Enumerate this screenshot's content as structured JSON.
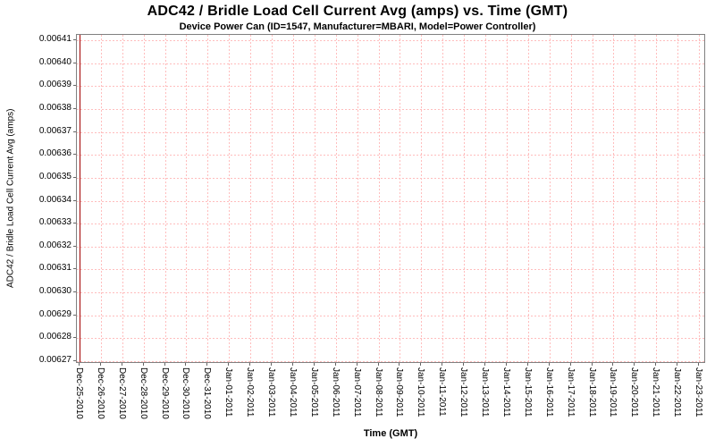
{
  "chart_data": {
    "type": "line",
    "title": "ADC42 / Bridle Load Cell Current Avg (amps) vs. Time (GMT)",
    "subtitle": "Device Power Can (ID=1547, Manufacturer=MBARI, Model=Power Controller)",
    "xlabel": "Time (GMT)",
    "ylabel": "ADC42 / Bridle Load Cell Current Avg (amps)",
    "ylim": [
      0.00627,
      0.00641
    ],
    "y_tick_step": 1e-05,
    "grid": true,
    "gridline_color": "#ffbdbd",
    "plot_border_color": "#808080",
    "legend": "none",
    "y_ticks": [
      "0.00641",
      "0.00640",
      "0.00639",
      "0.00638",
      "0.00637",
      "0.00636",
      "0.00635",
      "0.00634",
      "0.00633",
      "0.00632",
      "0.00631",
      "0.00630",
      "0.00629",
      "0.00628",
      "0.00627"
    ],
    "x_ticks": [
      "Dec-25-2010",
      "Dec-26-2010",
      "Dec-27-2010",
      "Dec-28-2010",
      "Dec-29-2010",
      "Dec-30-2010",
      "Dec-31-2010",
      "Jan-01-2011",
      "Jan-02-2011",
      "Jan-03-2011",
      "Jan-04-2011",
      "Jan-05-2011",
      "Jan-06-2011",
      "Jan-07-2011",
      "Jan-08-2011",
      "Jan-09-2011",
      "Jan-10-2011",
      "Jan-11-2011",
      "Jan-12-2011",
      "Jan-13-2011",
      "Jan-14-2011",
      "Jan-15-2011",
      "Jan-16-2011",
      "Jan-17-2011",
      "Jan-18-2011",
      "Jan-19-2011",
      "Jan-20-2011",
      "Jan-21-2011",
      "Jan-22-2011",
      "Jan-23-2011"
    ],
    "series": [
      {
        "name": "ADC42 / Bridle Load Cell Current Avg (amps)",
        "color": "#a40000",
        "shape": "vertical-spike",
        "x": "Dec-25-2010",
        "y_extent": [
          0.00627,
          0.00641
        ],
        "note": "All data concentrated at first timestamp; appears as a single vertical red line at the left edge of the plot"
      }
    ]
  }
}
